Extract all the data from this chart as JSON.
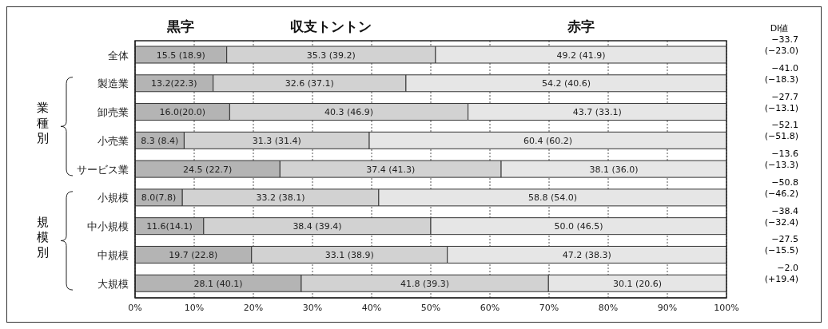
{
  "chart_data": {
    "type": "bar",
    "orientation": "horizontal",
    "stacked": true,
    "categories": [
      "全体",
      "製造業",
      "卸売業",
      "小売業",
      "サービス業",
      "小規模",
      "中小規模",
      "中規模",
      "大規模"
    ],
    "series": [
      {
        "name": "黒字",
        "color": "#b4b4b4",
        "values": [
          15.5,
          13.2,
          16.0,
          8.3,
          24.5,
          8.0,
          11.6,
          19.7,
          28.1
        ],
        "value_labels": [
          "15.5 (18.9)",
          "13.2(22.3)",
          "16.0(20.0)",
          "8.3 (8.4)",
          "24.5 (22.7)",
          "8.0(7.8)",
          "11.6(14.1)",
          "19.7 (22.8)",
          "28.1 (40.1)"
        ]
      },
      {
        "name": "収支トントン",
        "color": "#d2d2d2",
        "values": [
          35.3,
          32.6,
          40.3,
          31.3,
          37.4,
          33.2,
          38.4,
          33.1,
          41.8
        ],
        "value_labels": [
          "35.3 (39.2)",
          "32.6 (37.1)",
          "40.3 (46.9)",
          "31.3 (31.4)",
          "37.4 (41.3)",
          "33.2 (38.1)",
          "38.4 (39.4)",
          "33.1 (38.9)",
          "41.8 (39.3)"
        ]
      },
      {
        "name": "赤字",
        "color": "#e6e6e6",
        "values": [
          49.2,
          54.2,
          43.7,
          60.4,
          38.1,
          58.8,
          50.0,
          47.2,
          30.1
        ],
        "value_labels": [
          "49.2 (41.9)",
          "54.2 (40.6)",
          "43.7 (33.1)",
          "60.4 (60.2)",
          "38.1 (36.0)",
          "58.8 (54.0)",
          "50.0 (46.5)",
          "47.2 (38.3)",
          "30.1 (20.6)"
        ]
      }
    ],
    "xlim": [
      0,
      100
    ],
    "xticks": [
      {
        "value": 0,
        "label": "0%"
      },
      {
        "value": 10,
        "label": "10%"
      },
      {
        "value": 20,
        "label": "20%"
      },
      {
        "value": 30,
        "label": "30%"
      },
      {
        "value": 40,
        "label": "40%"
      },
      {
        "value": 50,
        "label": "50%"
      },
      {
        "value": 60,
        "label": "60%"
      },
      {
        "value": 70,
        "label": "70%"
      },
      {
        "value": 80,
        "label": "80%"
      },
      {
        "value": 90,
        "label": "90%"
      },
      {
        "value": 100,
        "label": "100%"
      }
    ],
    "grid": "x",
    "legend": "top",
    "annotations": [
      "DI値",
      "業種別",
      "規模別",
      "−33.7\n(−23.0)",
      "−41.0\n(−18.3)",
      "−27.7\n(−13.1)",
      "−52.1\n(−51.8)",
      "−13.6\n(−13.3)",
      "−50.8\n(−46.2)",
      "−38.4\n(−32.4)",
      "−27.5\n(−15.5)",
      "−2.0\n(+19.4)"
    ]
  }
}
